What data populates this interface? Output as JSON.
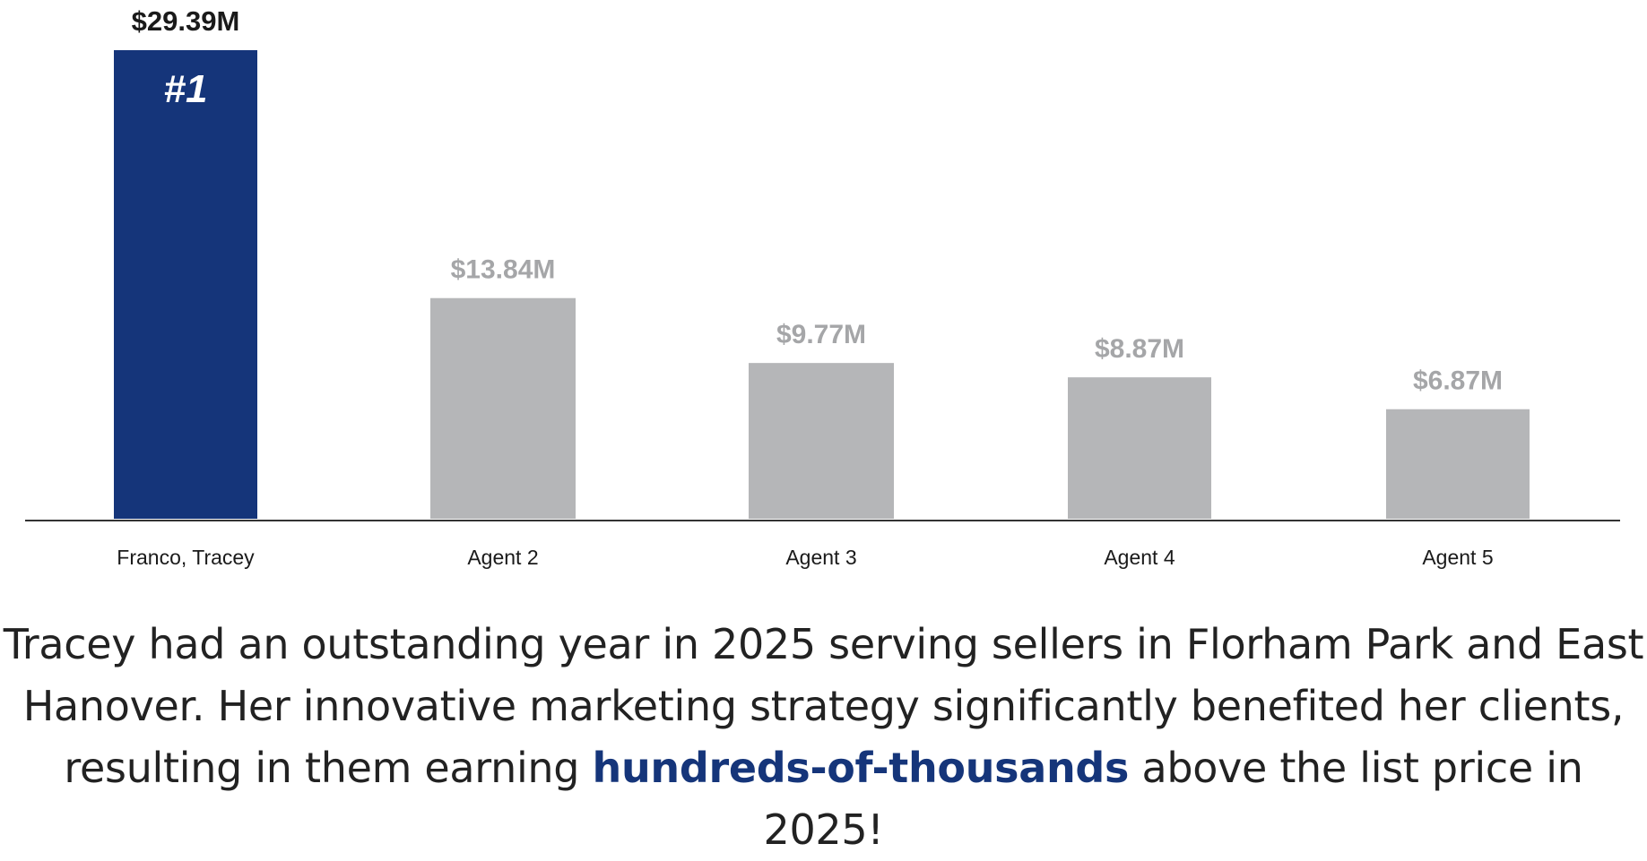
{
  "chart_data": {
    "type": "bar",
    "title": "",
    "xlabel": "",
    "ylabel": "",
    "ylim": [
      0,
      29.39
    ],
    "grid": false,
    "categories": [
      "Franco, Tracey",
      "Agent 2",
      "Agent 3",
      "Agent 4",
      "Agent 5"
    ],
    "values": [
      29.39,
      13.84,
      9.77,
      8.87,
      6.87
    ],
    "value_labels": [
      "$29.39M",
      "$13.84M",
      "$9.77M",
      "$8.87M",
      "$6.87M"
    ],
    "rank_badge": "#1",
    "highlight_index": 0,
    "colors": {
      "highlight": "#15357a",
      "default": "#b5b6b8",
      "highlight_label": "#1a1a1a",
      "default_label": "#a5a6a8",
      "axis": "#333333",
      "badge": "#ffffff",
      "category_label": "#1a1a1a"
    }
  },
  "caption": {
    "before": "Tracey had an outstanding year in 2025 serving sellers in Florham Park and East Hanover. Her innovative marketing strategy significantly benefited her clients, resulting in them earning ",
    "highlight": "hundreds-of-thousands",
    "after": " above the list price in 2025!",
    "highlight_color": "#15357a"
  }
}
